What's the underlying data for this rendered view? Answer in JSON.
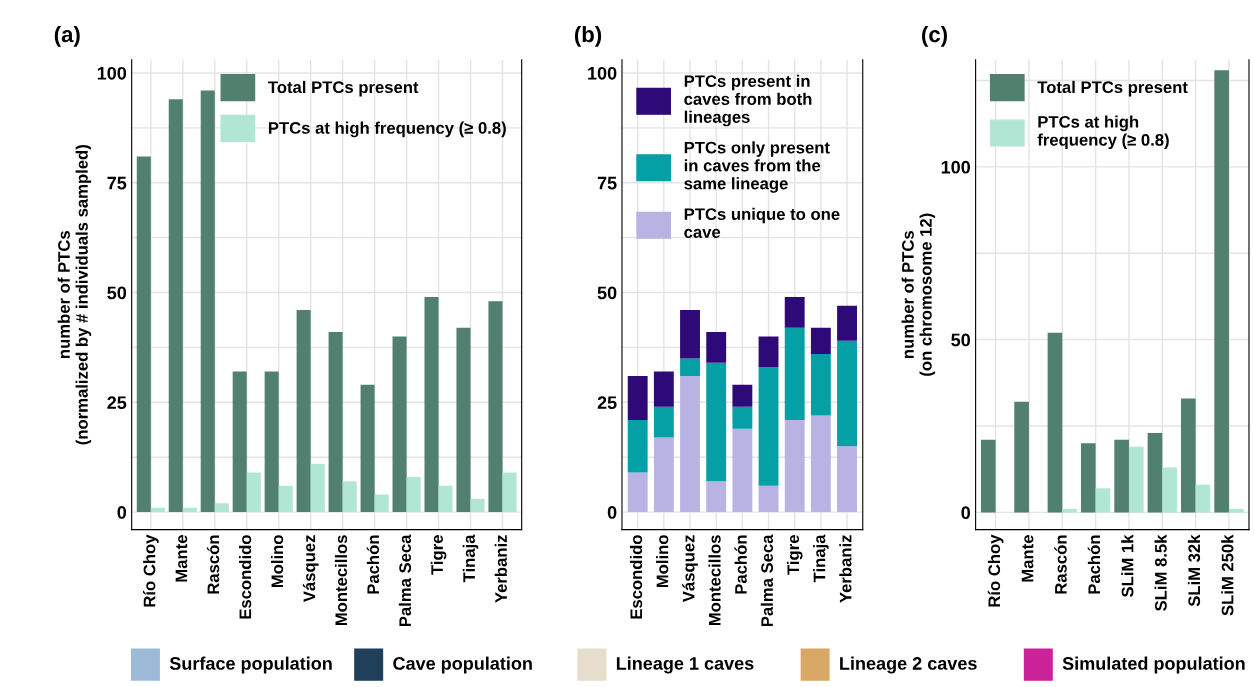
{
  "chart_data": [
    {
      "type": "bar",
      "title": "(a)",
      "ylabel": "number of PTCs\n(normalized by # individuals sampled)",
      "categories": [
        "Río Choy",
        "Mante",
        "Rascón",
        "Escondido",
        "Molino",
        "Vásquez",
        "Montecillos",
        "Pachón",
        "Palma Seca",
        "Tigre",
        "Tinaja",
        "Yerbaniz"
      ],
      "series": [
        {
          "name": "Total PTCs present",
          "color": "#52806f",
          "values": [
            81,
            94,
            96,
            32,
            32,
            46,
            41,
            29,
            40,
            49,
            42,
            48
          ]
        },
        {
          "name": "PTCs at high frequency (≥ 0.8)",
          "color": "#b0e6d3",
          "values": [
            1,
            1,
            2,
            9,
            6,
            11,
            7,
            4,
            8,
            6,
            3,
            9
          ]
        }
      ],
      "ylim": [
        -4,
        103
      ],
      "yticks": [
        0,
        25,
        50,
        75,
        100
      ],
      "grid": true,
      "legend": "top right"
    },
    {
      "type": "bar",
      "title": "(b)",
      "stacked": true,
      "categories": [
        "Escondido",
        "Molino",
        "Vásquez",
        "Montecillos",
        "Pachón",
        "Palma Seca",
        "Tigre",
        "Tinaja",
        "Yerbaniz"
      ],
      "series": [
        {
          "name": "PTCs unique to one cave",
          "color": "#b8b3e3",
          "values": [
            9,
            17,
            31,
            7,
            19,
            6,
            21,
            22,
            15
          ]
        },
        {
          "name": "PTCs only present in caves from the same lineage",
          "color": "#05a0a5",
          "values": [
            12,
            7,
            4,
            27,
            5,
            27,
            21,
            14,
            24
          ]
        },
        {
          "name": "PTCs present in caves from both lineages",
          "color": "#2e0a78",
          "values": [
            10,
            8,
            11,
            7,
            5,
            7,
            7,
            6,
            8
          ]
        }
      ],
      "ylim": [
        -4,
        103
      ],
      "yticks": [
        0,
        25,
        50,
        75,
        100
      ],
      "grid": true,
      "legend": "top left"
    },
    {
      "type": "bar",
      "title": "(c)",
      "ylabel": "number of PTCs\n(on chromosome 12)",
      "categories": [
        "Río Choy",
        "Mante",
        "Rascón",
        "Pachón",
        "SLiM 1k",
        "SLiM 8.5k",
        "SLiM 32k",
        "SLiM 250k"
      ],
      "series": [
        {
          "name": "Total PTCs present",
          "color": "#52806f",
          "values": [
            21,
            32,
            52,
            20,
            21,
            23,
            33,
            128
          ]
        },
        {
          "name": "PTCs at high frequency (≥ 0.8)",
          "color": "#b0e6d3",
          "values": [
            0,
            0,
            1,
            7,
            19,
            13,
            8,
            1
          ]
        }
      ],
      "ylim": [
        -5,
        131
      ],
      "yticks": [
        0,
        50,
        100
      ],
      "grid": true,
      "legend": "top left"
    },
    {
      "type": "other",
      "categories": [
        "Surface population",
        "Cave population",
        "Lineage 1 caves",
        "Lineage 2 caves",
        "Simulated population"
      ],
      "colors": [
        "#9dbbd9",
        "#1f3f5a",
        "#e6ddcc",
        "#d9a866",
        "#cc2299"
      ]
    }
  ]
}
